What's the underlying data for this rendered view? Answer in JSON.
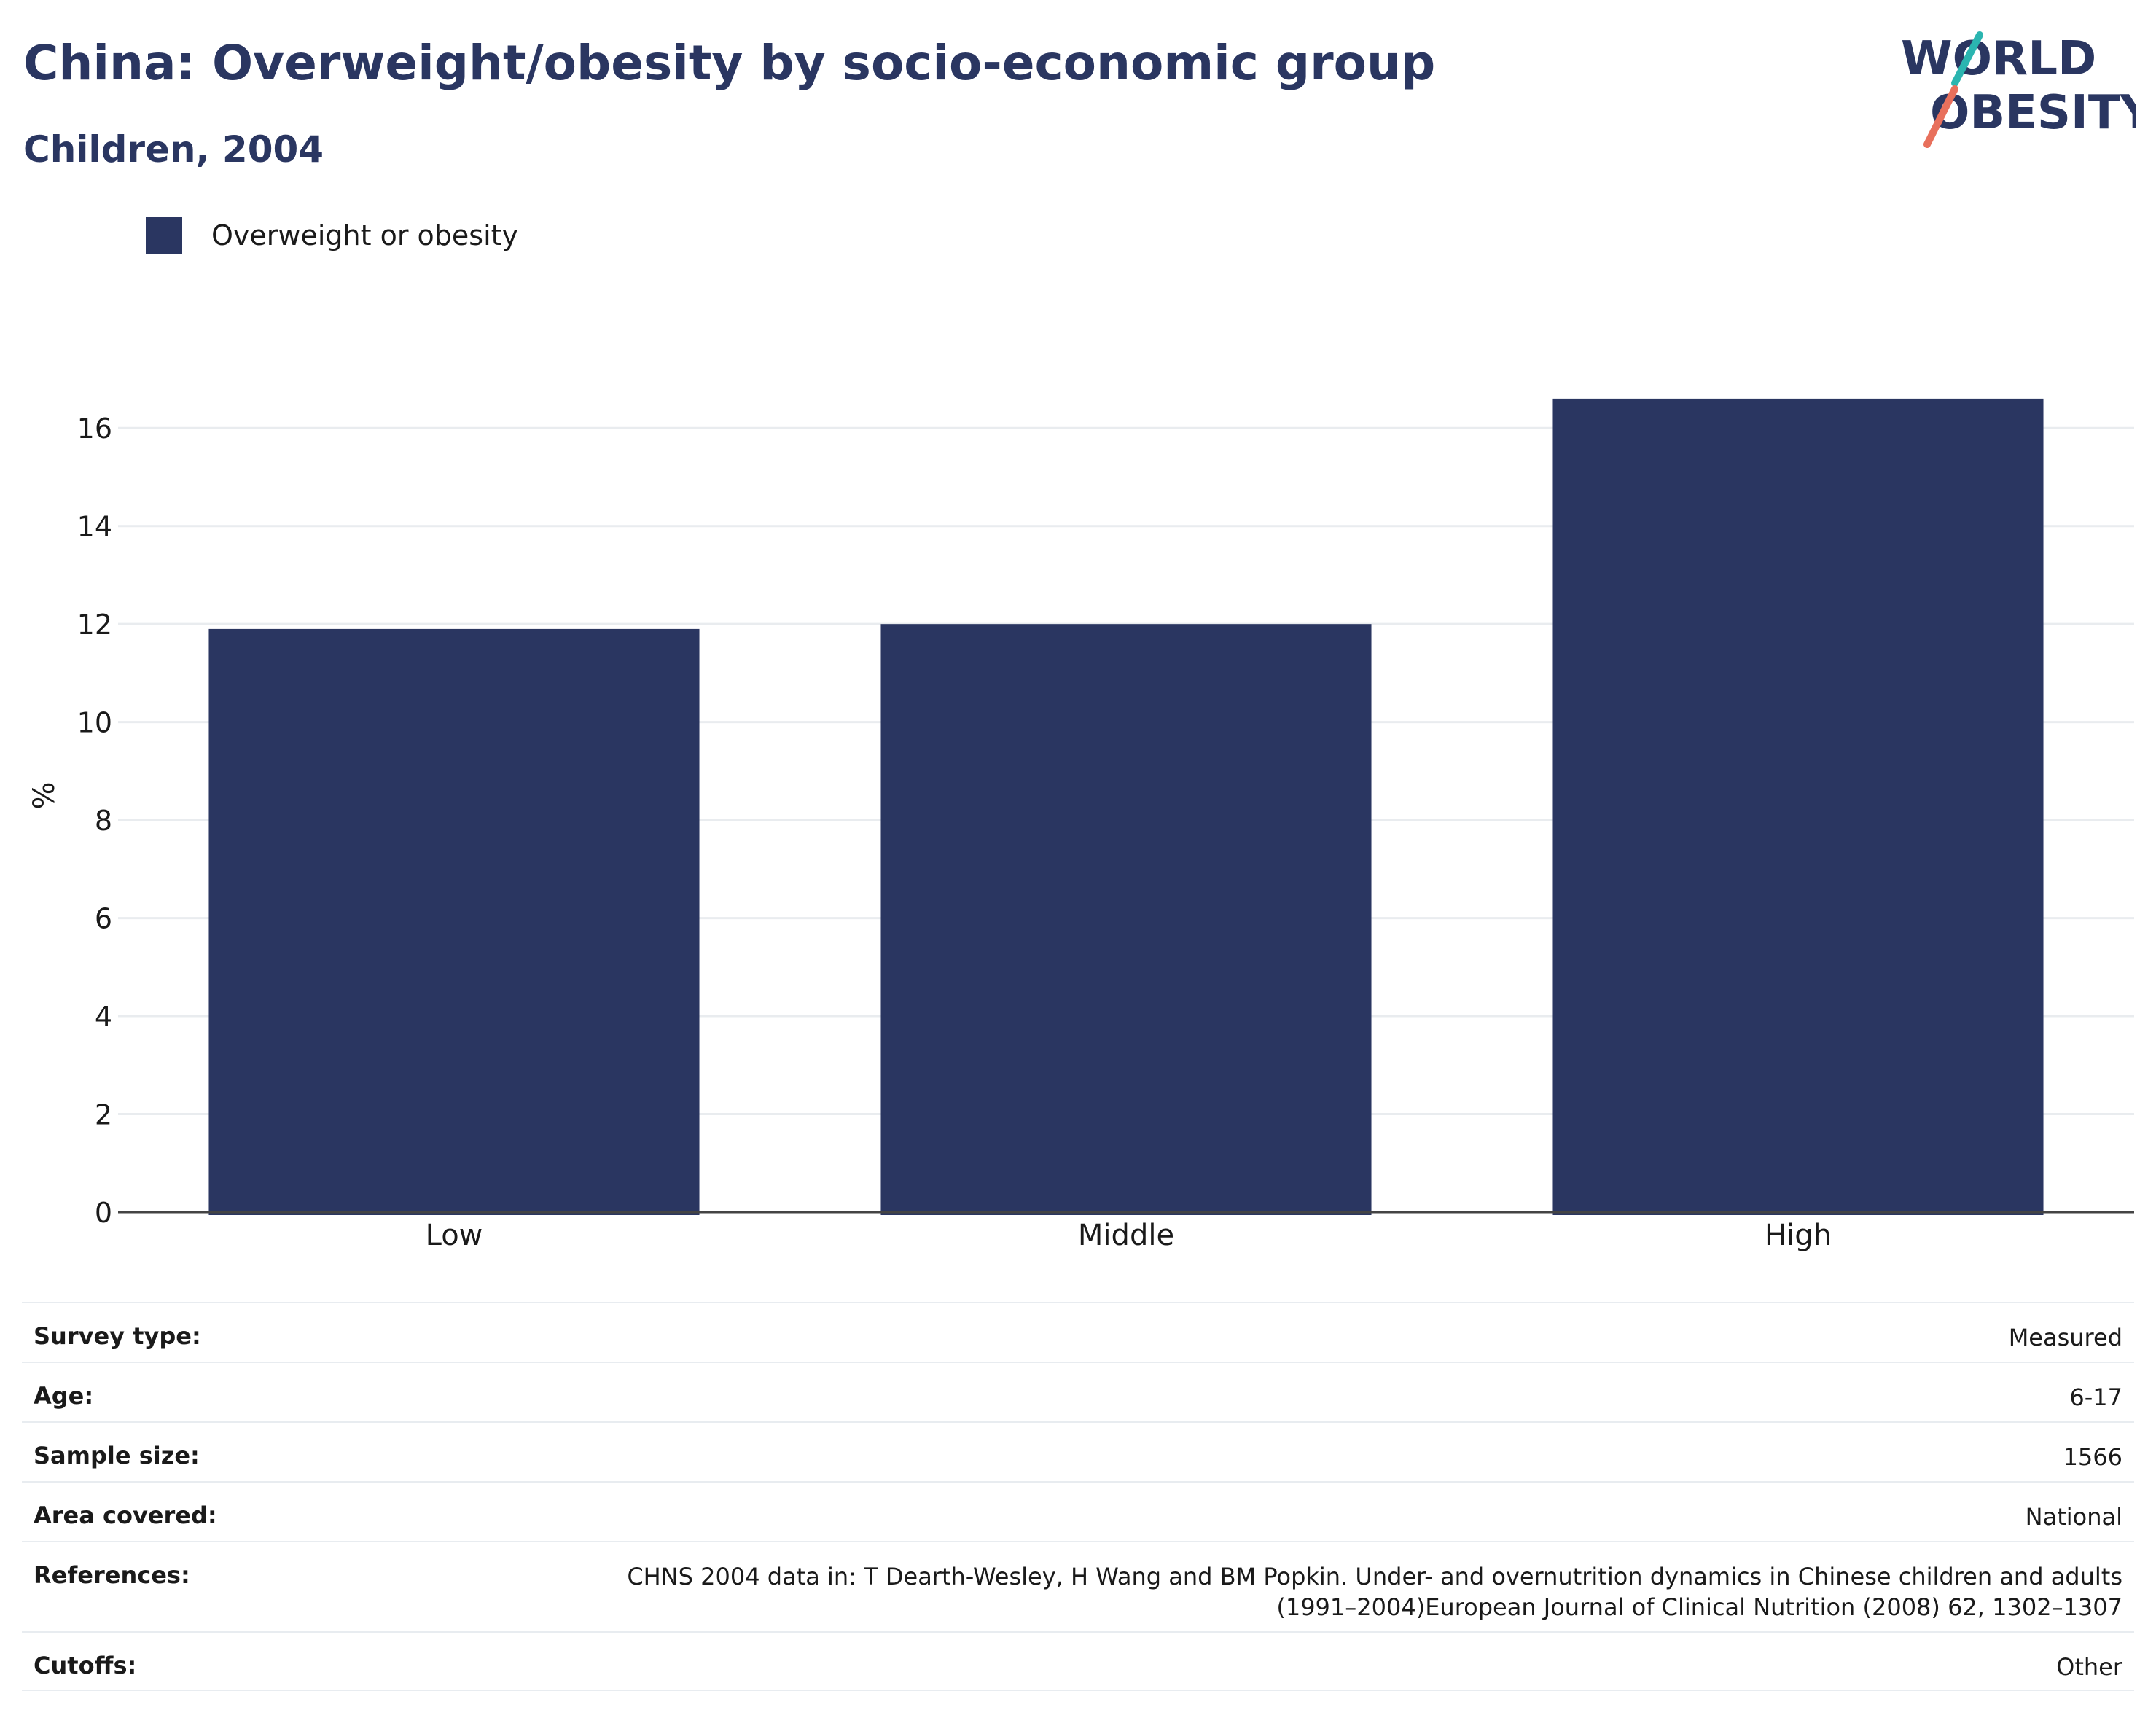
{
  "title": "China: Overweight/obesity by socio-economic group",
  "subtitle": "Children, 2004",
  "logo": {
    "line1": "WORLD",
    "line2": "OBESITY",
    "colors": {
      "text": "#2a3661",
      "slash_teal": "#2bb5b0",
      "slash_coral": "#e8705c"
    }
  },
  "legend": {
    "label": "Overweight or obesity",
    "color": "#2a3661"
  },
  "chart_data": {
    "type": "bar",
    "categories": [
      "Low",
      "Middle",
      "High"
    ],
    "series": [
      {
        "name": "Overweight or obesity",
        "values": [
          11.9,
          12.0,
          16.6
        ],
        "color": "#2a3661"
      }
    ],
    "title": "China: Overweight/obesity by socio-economic group",
    "subtitle": "Children, 2004",
    "xlabel": "",
    "ylabel": "%",
    "ylim": [
      0,
      17
    ],
    "yticks": [
      0,
      2,
      4,
      6,
      8,
      10,
      12,
      14,
      16
    ],
    "grid": true,
    "legend_position": "top-left"
  },
  "meta": {
    "survey_type": {
      "label": "Survey type:",
      "value": "Measured"
    },
    "age": {
      "label": "Age:",
      "value": "6-17"
    },
    "sample_size": {
      "label": "Sample size:",
      "value": "1566"
    },
    "area_covered": {
      "label": "Area covered:",
      "value": "National"
    },
    "references": {
      "label": "References:",
      "line1": "CHNS 2004 data in: T Dearth-Wesley, H Wang and BM Popkin. Under- and overnutrition dynamics in Chinese children and adults",
      "line2": "(1991–2004)European Journal of Clinical Nutrition (2008) 62, 1302–1307"
    },
    "cutoffs": {
      "label": "Cutoffs:",
      "value": "Other"
    }
  }
}
